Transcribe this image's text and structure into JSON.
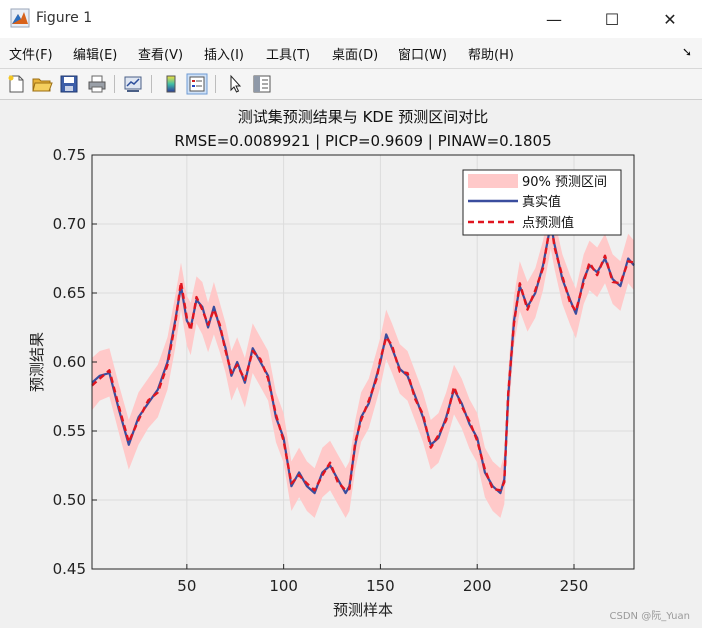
{
  "window": {
    "title": "Figure 1"
  },
  "menu": [
    "文件(F)",
    "编辑(E)",
    "查看(V)",
    "插入(I)",
    "工具(T)",
    "桌面(D)",
    "窗口(W)",
    "帮助(H)"
  ],
  "toolbar_icons": [
    "new-figure-icon",
    "open-folder-icon",
    "save-icon",
    "print-icon",
    "link-plot-icon",
    "colorbar-icon",
    "legend-icon",
    "pointer-icon",
    "property-editor-icon"
  ],
  "watermark": "CSDN @阮_Yuan",
  "chart_data": {
    "type": "line",
    "title": "测试集预测结果与 KDE 预测区间对比",
    "subtitle": "RMSE=0.0089921 | PICP=0.9609 | PINAW=0.1805",
    "xlabel": "预测样本",
    "ylabel": "预测结果",
    "xlim": [
      1,
      281
    ],
    "ylim": [
      0.45,
      0.75
    ],
    "xticks": [
      50,
      100,
      150,
      200,
      250
    ],
    "yticks": [
      0.45,
      0.5,
      0.55,
      0.6,
      0.65,
      0.7,
      0.75
    ],
    "grid": true,
    "legend_position": "top-right",
    "legend": [
      "90% 预测区间",
      "真实值",
      "点预测值"
    ],
    "colors": {
      "interval": "#ffc9c9",
      "true": "#3a4d9e",
      "pred": "#e0151f"
    },
    "x": [
      1,
      5,
      10,
      15,
      20,
      25,
      30,
      35,
      40,
      44,
      47,
      50,
      52,
      55,
      58,
      61,
      64,
      67,
      70,
      73,
      76,
      80,
      84,
      88,
      92,
      96,
      100,
      104,
      108,
      112,
      116,
      120,
      124,
      128,
      132,
      134,
      137,
      140,
      144,
      148,
      150,
      153,
      156,
      160,
      164,
      168,
      172,
      176,
      180,
      184,
      188,
      192,
      196,
      200,
      204,
      208,
      212,
      214,
      216,
      219,
      222,
      226,
      230,
      234,
      238,
      240,
      244,
      248,
      251,
      255,
      258,
      262,
      266,
      270,
      274,
      278,
      281
    ],
    "series": [
      {
        "name": "真实值",
        "values": [
          0.585,
          0.59,
          0.592,
          0.565,
          0.54,
          0.56,
          0.57,
          0.58,
          0.6,
          0.63,
          0.655,
          0.63,
          0.625,
          0.645,
          0.64,
          0.625,
          0.64,
          0.625,
          0.61,
          0.59,
          0.6,
          0.585,
          0.61,
          0.6,
          0.59,
          0.56,
          0.545,
          0.51,
          0.52,
          0.51,
          0.505,
          0.52,
          0.525,
          0.515,
          0.505,
          0.51,
          0.54,
          0.56,
          0.57,
          0.59,
          0.6,
          0.62,
          0.61,
          0.595,
          0.59,
          0.575,
          0.56,
          0.54,
          0.545,
          0.56,
          0.58,
          0.57,
          0.555,
          0.545,
          0.52,
          0.51,
          0.505,
          0.515,
          0.575,
          0.63,
          0.655,
          0.64,
          0.65,
          0.67,
          0.7,
          0.685,
          0.66,
          0.645,
          0.635,
          0.66,
          0.67,
          0.665,
          0.675,
          0.66,
          0.655,
          0.675,
          0.67
        ]
      },
      {
        "name": "点预测值",
        "values": [
          0.583,
          0.588,
          0.594,
          0.567,
          0.542,
          0.558,
          0.572,
          0.578,
          0.598,
          0.628,
          0.658,
          0.632,
          0.623,
          0.647,
          0.638,
          0.627,
          0.638,
          0.627,
          0.608,
          0.592,
          0.598,
          0.587,
          0.608,
          0.602,
          0.588,
          0.562,
          0.543,
          0.512,
          0.518,
          0.512,
          0.507,
          0.518,
          0.527,
          0.513,
          0.507,
          0.508,
          0.542,
          0.558,
          0.572,
          0.588,
          0.602,
          0.618,
          0.612,
          0.593,
          0.592,
          0.573,
          0.562,
          0.538,
          0.547,
          0.558,
          0.582,
          0.568,
          0.557,
          0.543,
          0.522,
          0.508,
          0.507,
          0.513,
          0.577,
          0.628,
          0.657,
          0.638,
          0.652,
          0.668,
          0.702,
          0.683,
          0.662,
          0.643,
          0.637,
          0.658,
          0.672,
          0.663,
          0.677,
          0.658,
          0.657,
          0.673,
          0.672
        ]
      },
      {
        "name": "90% 预测区间",
        "lower": [
          0.565,
          0.572,
          0.575,
          0.548,
          0.522,
          0.54,
          0.552,
          0.56,
          0.58,
          0.61,
          0.638,
          0.612,
          0.605,
          0.628,
          0.62,
          0.607,
          0.62,
          0.607,
          0.592,
          0.572,
          0.582,
          0.567,
          0.592,
          0.582,
          0.572,
          0.542,
          0.527,
          0.492,
          0.502,
          0.492,
          0.487,
          0.502,
          0.507,
          0.497,
          0.487,
          0.492,
          0.522,
          0.542,
          0.552,
          0.572,
          0.582,
          0.602,
          0.592,
          0.577,
          0.572,
          0.557,
          0.542,
          0.522,
          0.527,
          0.542,
          0.562,
          0.552,
          0.537,
          0.527,
          0.502,
          0.492,
          0.487,
          0.497,
          0.557,
          0.612,
          0.637,
          0.622,
          0.632,
          0.652,
          0.682,
          0.667,
          0.642,
          0.627,
          0.617,
          0.642,
          0.652,
          0.647,
          0.657,
          0.642,
          0.637,
          0.657,
          0.652
        ],
        "upper": [
          0.603,
          0.608,
          0.61,
          0.583,
          0.558,
          0.578,
          0.588,
          0.598,
          0.618,
          0.648,
          0.672,
          0.648,
          0.643,
          0.662,
          0.658,
          0.643,
          0.658,
          0.643,
          0.628,
          0.608,
          0.618,
          0.603,
          0.628,
          0.618,
          0.608,
          0.578,
          0.563,
          0.528,
          0.538,
          0.528,
          0.523,
          0.538,
          0.543,
          0.533,
          0.523,
          0.528,
          0.558,
          0.578,
          0.588,
          0.608,
          0.618,
          0.638,
          0.628,
          0.613,
          0.608,
          0.593,
          0.578,
          0.558,
          0.563,
          0.578,
          0.598,
          0.588,
          0.573,
          0.563,
          0.538,
          0.528,
          0.523,
          0.533,
          0.593,
          0.648,
          0.673,
          0.658,
          0.668,
          0.688,
          0.718,
          0.703,
          0.678,
          0.663,
          0.653,
          0.678,
          0.688,
          0.683,
          0.693,
          0.678,
          0.673,
          0.693,
          0.688
        ]
      }
    ]
  }
}
